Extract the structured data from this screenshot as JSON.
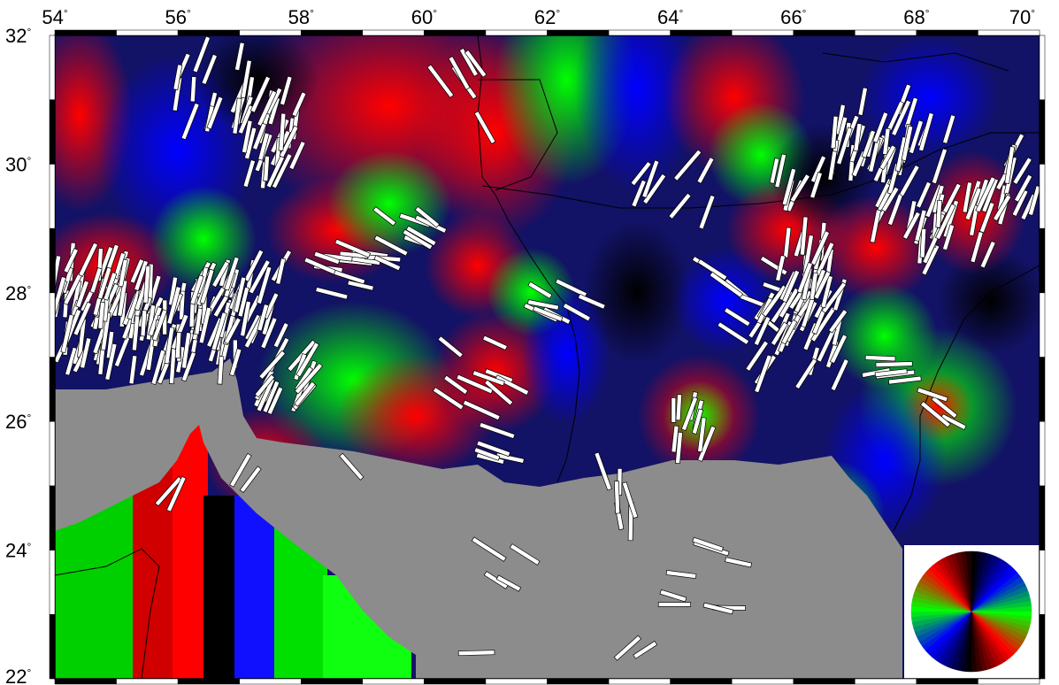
{
  "map": {
    "lon_range": [
      54,
      70
    ],
    "lat_range": [
      22,
      32
    ],
    "lon_ticks": [
      "54",
      "56",
      "58",
      "60",
      "62",
      "64",
      "66",
      "68",
      "70"
    ],
    "lat_ticks": [
      "32",
      "30",
      "28",
      "26",
      "24",
      "22"
    ],
    "degree_symbol": "°",
    "land_color": "#8c8c8c",
    "field_colors": [
      "#ff0000",
      "#00ff00",
      "#0000ff",
      "#000000"
    ],
    "stick_color": "#ffffff",
    "legend": {
      "type": "orientation-color-wheel",
      "placement": "bottom-right"
    }
  }
}
